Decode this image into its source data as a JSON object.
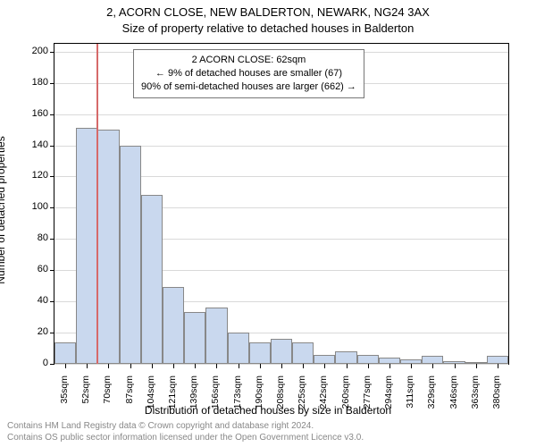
{
  "title_line1": "2, ACORN CLOSE, NEW BALDERTON, NEWARK, NG24 3AX",
  "title_line2": "Size of property relative to detached houses in Balderton",
  "ylabel": "Number of detached properties",
  "xlabel": "Distribution of detached houses by size in Balderton",
  "legend": {
    "line1": "2 ACORN CLOSE: 62sqm",
    "line2": "← 9% of detached houses are smaller (67)",
    "line3": "90% of semi-detached houses are larger (662) →"
  },
  "marker_value": 62,
  "marker_color": "#d66a6a",
  "chart": {
    "type": "histogram",
    "background_color": "#ffffff",
    "grid_color": "#d9d9d9",
    "bar_fill": "#c9d8ee",
    "bar_border": "#888888",
    "ylim": [
      0,
      205
    ],
    "yticks": [
      0,
      20,
      40,
      60,
      80,
      100,
      120,
      140,
      160,
      180,
      200
    ],
    "x_start": 28,
    "x_bin_width": 17.4,
    "xtick_labels": [
      "35sqm",
      "52sqm",
      "70sqm",
      "87sqm",
      "104sqm",
      "121sqm",
      "139sqm",
      "156sqm",
      "173sqm",
      "190sqm",
      "208sqm",
      "225sqm",
      "242sqm",
      "260sqm",
      "277sqm",
      "294sqm",
      "311sqm",
      "329sqm",
      "346sqm",
      "363sqm",
      "380sqm"
    ],
    "bar_counts": [
      14,
      151,
      150,
      140,
      108,
      49,
      33,
      36,
      20,
      14,
      16,
      14,
      6,
      8,
      6,
      4,
      3,
      5,
      2,
      1,
      5
    ]
  },
  "footer_line1": "Contains HM Land Registry data © Crown copyright and database right 2024.",
  "footer_line2": "Contains OS public sector information licensed under the Open Government Licence v3.0."
}
